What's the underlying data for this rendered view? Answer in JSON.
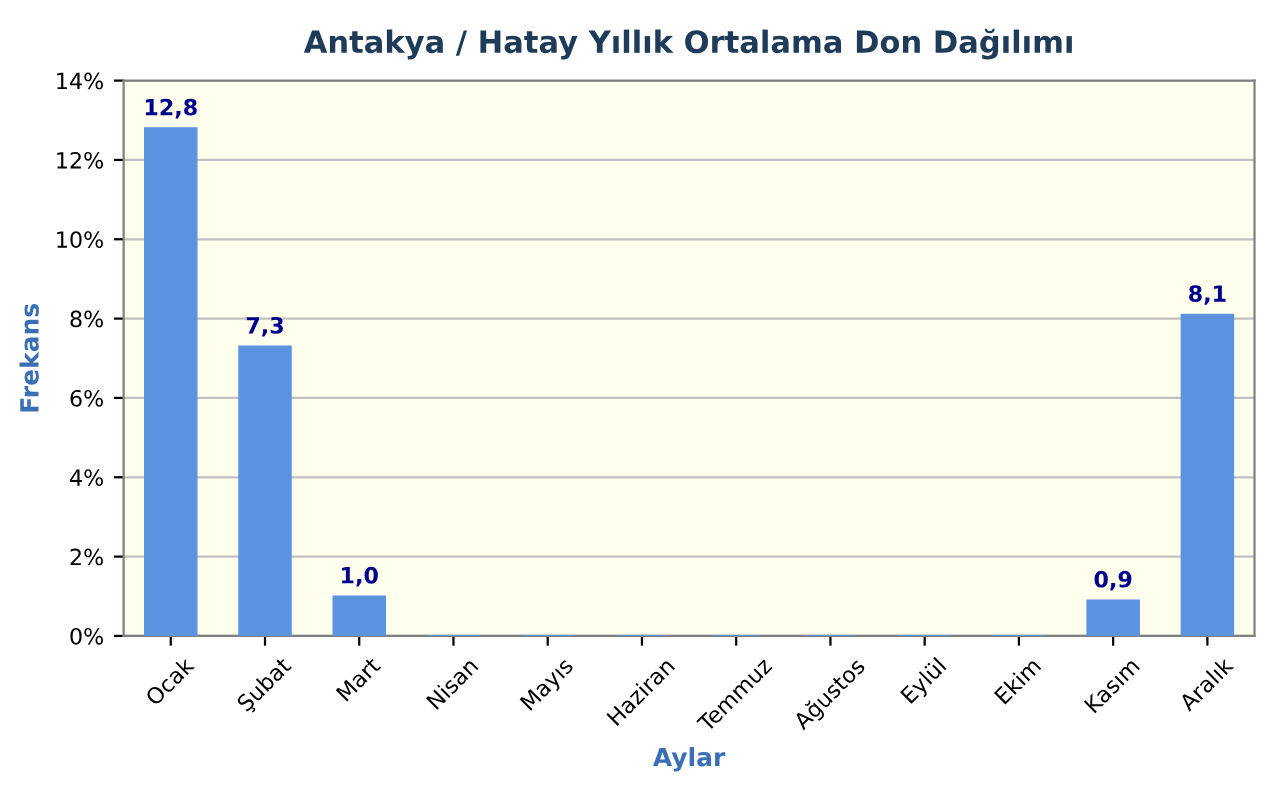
{
  "chart_data": {
    "type": "bar",
    "title": "Antakya / Hatay Yıllık Ortalama Don Dağılımı",
    "xlabel": "Aylar",
    "ylabel": "Frekans",
    "categories": [
      "Ocak",
      "Şubat",
      "Mart",
      "Nisan",
      "Mayıs",
      "Haziran",
      "Temmuz",
      "Ağustos",
      "Eylül",
      "Ekim",
      "Kasım",
      "Aralık"
    ],
    "series": [
      {
        "color": "#5b93de",
        "values": [
          12.8,
          7.3,
          1.0,
          0,
          0,
          0,
          0,
          0,
          0,
          0,
          0.9,
          8.1
        ],
        "value_labels": [
          "12,8",
          "7,3",
          "1,0",
          null,
          null,
          null,
          null,
          null,
          null,
          null,
          "0,9",
          "8,1"
        ]
      }
    ],
    "ylim": [
      0,
      14
    ],
    "yticks": [
      {
        "value": 0,
        "label": "0%"
      },
      {
        "value": 2,
        "label": "2%"
      },
      {
        "value": 4,
        "label": "4%"
      },
      {
        "value": 6,
        "label": "6%"
      },
      {
        "value": 8,
        "label": "8%"
      },
      {
        "value": 10,
        "label": "10%"
      },
      {
        "value": 12,
        "label": "12%"
      },
      {
        "value": 14,
        "label": "14%"
      }
    ],
    "grid": "y",
    "legend": false
  }
}
